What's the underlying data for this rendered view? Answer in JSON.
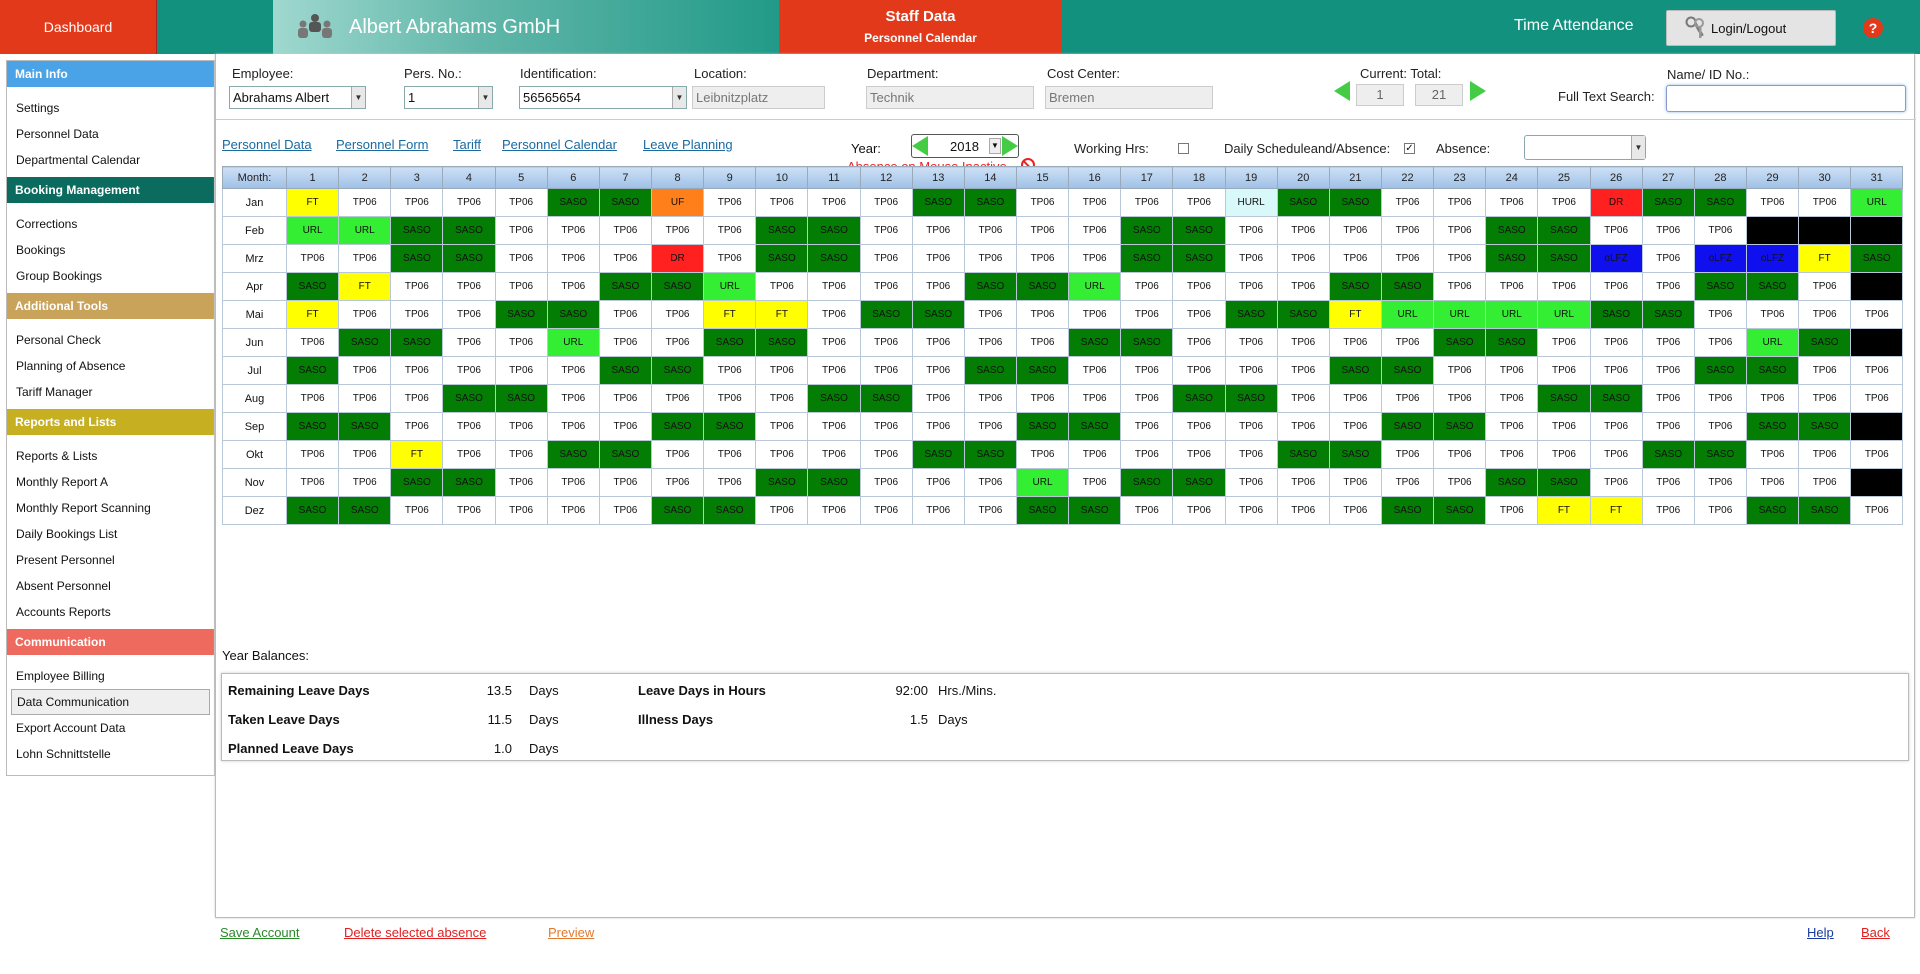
{
  "header": {
    "dashboard": "Dashboard",
    "company": "Albert Abrahams GmbH",
    "staff_title": "Staff Data",
    "staff_sub": "Personnel Calendar",
    "time_attendance": "Time Attendance",
    "login": "Login/Logout",
    "help": "?"
  },
  "sidebar": [
    {
      "title": "Main Info",
      "color": "#4aa3e6",
      "items": [
        "Settings",
        "Personnel Data",
        "Departmental Calendar"
      ]
    },
    {
      "title": "Booking Management",
      "color": "#0b6b5e",
      "items": [
        "Corrections",
        "Bookings",
        "Group Bookings"
      ]
    },
    {
      "title": "Additional Tools",
      "color": "#c9a35a",
      "items": [
        "Personal Check",
        "Planning of Absence",
        "Tariff Manager"
      ]
    },
    {
      "title": "Reports and Lists",
      "color": "#c6b022",
      "items": [
        "Reports & Lists",
        "Monthly Report A",
        "Monthly Report Scanning",
        "Daily Bookings List",
        "Present Personnel",
        "Absent Personnel",
        "Accounts Reports"
      ]
    },
    {
      "title": "Communication",
      "color": "#ef6a5e",
      "items": [
        "Employee Billing",
        "Data Communication",
        "Export Account Data",
        "Lohn Schnittstelle"
      ]
    }
  ],
  "sidebar_active": "Data Communication",
  "filters": {
    "employee_label": "Employee:",
    "employee": "Abrahams Albert",
    "persno_label": "Pers. No.:",
    "persno": "1",
    "ident_label": "Identification:",
    "ident": "56565654",
    "location_label": "Location:",
    "location": "Leibnitzplatz",
    "dept_label": "Department:",
    "dept": "Technik",
    "cost_label": "Cost Center:",
    "cost": "Bremen",
    "current_label": "Current: Total:",
    "current": "1",
    "total": "21",
    "name_label": "Name/ ID No.:",
    "search_label": "Full Text Search:",
    "search_value": ""
  },
  "nav_links": [
    "Personnel Data",
    "Personnel Form",
    "Tariff",
    "Personnel Calendar",
    "Leave Planning"
  ],
  "controls": {
    "year_label": "Year:",
    "year": "2018",
    "absence_inactive": "Absence on Mouse Inactive",
    "working_hrs": "Working Hrs:",
    "working_checked": false,
    "daily": "Daily Scheduleand/Absence:",
    "daily_checked": true,
    "absence_label": "Absence:",
    "absence_value": ""
  },
  "calendar": {
    "month_header": "Month:",
    "days": [
      "1",
      "2",
      "3",
      "4",
      "5",
      "6",
      "7",
      "8",
      "9",
      "10",
      "11",
      "12",
      "13",
      "14",
      "15",
      "16",
      "17",
      "18",
      "19",
      "20",
      "21",
      "22",
      "23",
      "24",
      "25",
      "26",
      "27",
      "28",
      "29",
      "30",
      "31"
    ],
    "colors": {
      "SASO": "#037d03",
      "FT": "#ffff00",
      "URL": "#33ee33",
      "UF": "#ff7f1a",
      "DR": "#ff2020",
      "HURL": "#d8f8fa",
      "oLFZ": "#1010ee",
      "": "#000000"
    },
    "rows": [
      {
        "month": "Jan",
        "cells": [
          "FT",
          "TP06",
          "TP06",
          "TP06",
          "TP06",
          "SASO",
          "SASO",
          "UF",
          "TP06",
          "TP06",
          "TP06",
          "TP06",
          "SASO",
          "SASO",
          "TP06",
          "TP06",
          "TP06",
          "TP06",
          "HURL",
          "SASO",
          "SASO",
          "TP06",
          "TP06",
          "TP06",
          "TP06",
          "DR",
          "SASO",
          "SASO",
          "TP06",
          "TP06",
          "URL"
        ]
      },
      {
        "month": "Feb",
        "cells": [
          "URL",
          "URL",
          "SASO",
          "SASO",
          "TP06",
          "TP06",
          "TP06",
          "TP06",
          "TP06",
          "SASO",
          "SASO",
          "TP06",
          "TP06",
          "TP06",
          "TP06",
          "TP06",
          "SASO",
          "SASO",
          "TP06",
          "TP06",
          "TP06",
          "TP06",
          "TP06",
          "SASO",
          "SASO",
          "TP06",
          "TP06",
          "TP06",
          "",
          "",
          ""
        ]
      },
      {
        "month": "Mrz",
        "cells": [
          "TP06",
          "TP06",
          "SASO",
          "SASO",
          "TP06",
          "TP06",
          "TP06",
          "DR",
          "TP06",
          "SASO",
          "SASO",
          "TP06",
          "TP06",
          "TP06",
          "TP06",
          "TP06",
          "SASO",
          "SASO",
          "TP06",
          "TP06",
          "TP06",
          "TP06",
          "TP06",
          "SASO",
          "SASO",
          "oLFZ",
          "TP06",
          "oLFZ",
          "oLFZ",
          "FT",
          "SASO"
        ]
      },
      {
        "month": "Apr",
        "cells": [
          "SASO",
          "FT",
          "TP06",
          "TP06",
          "TP06",
          "TP06",
          "SASO",
          "SASO",
          "URL",
          "TP06",
          "TP06",
          "TP06",
          "TP06",
          "SASO",
          "SASO",
          "URL",
          "TP06",
          "TP06",
          "TP06",
          "TP06",
          "SASO",
          "SASO",
          "TP06",
          "TP06",
          "TP06",
          "TP06",
          "TP06",
          "SASO",
          "SASO",
          "TP06",
          ""
        ]
      },
      {
        "month": "Mai",
        "cells": [
          "FT",
          "TP06",
          "TP06",
          "TP06",
          "SASO",
          "SASO",
          "TP06",
          "TP06",
          "FT",
          "FT",
          "TP06",
          "SASO",
          "SASO",
          "TP06",
          "TP06",
          "TP06",
          "TP06",
          "TP06",
          "SASO",
          "SASO",
          "FT",
          "URL",
          "URL",
          "URL",
          "URL",
          "SASO",
          "SASO",
          "TP06",
          "TP06",
          "TP06",
          "TP06"
        ]
      },
      {
        "month": "Jun",
        "cells": [
          "TP06",
          "SASO",
          "SASO",
          "TP06",
          "TP06",
          "URL",
          "TP06",
          "TP06",
          "SASO",
          "SASO",
          "TP06",
          "TP06",
          "TP06",
          "TP06",
          "TP06",
          "SASO",
          "SASO",
          "TP06",
          "TP06",
          "TP06",
          "TP06",
          "TP06",
          "SASO",
          "SASO",
          "TP06",
          "TP06",
          "TP06",
          "TP06",
          "URL",
          "SASO",
          ""
        ]
      },
      {
        "month": "Jul",
        "cells": [
          "SASO",
          "TP06",
          "TP06",
          "TP06",
          "TP06",
          "TP06",
          "SASO",
          "SASO",
          "TP06",
          "TP06",
          "TP06",
          "TP06",
          "TP06",
          "SASO",
          "SASO",
          "TP06",
          "TP06",
          "TP06",
          "TP06",
          "TP06",
          "SASO",
          "SASO",
          "TP06",
          "TP06",
          "TP06",
          "TP06",
          "TP06",
          "SASO",
          "SASO",
          "TP06",
          "TP06"
        ]
      },
      {
        "month": "Aug",
        "cells": [
          "TP06",
          "TP06",
          "TP06",
          "SASO",
          "SASO",
          "TP06",
          "TP06",
          "TP06",
          "TP06",
          "TP06",
          "SASO",
          "SASO",
          "TP06",
          "TP06",
          "TP06",
          "TP06",
          "TP06",
          "SASO",
          "SASO",
          "TP06",
          "TP06",
          "TP06",
          "TP06",
          "TP06",
          "SASO",
          "SASO",
          "TP06",
          "TP06",
          "TP06",
          "TP06",
          "TP06"
        ]
      },
      {
        "month": "Sep",
        "cells": [
          "SASO",
          "SASO",
          "TP06",
          "TP06",
          "TP06",
          "TP06",
          "TP06",
          "SASO",
          "SASO",
          "TP06",
          "TP06",
          "TP06",
          "TP06",
          "TP06",
          "SASO",
          "SASO",
          "TP06",
          "TP06",
          "TP06",
          "TP06",
          "TP06",
          "SASO",
          "SASO",
          "TP06",
          "TP06",
          "TP06",
          "TP06",
          "TP06",
          "SASO",
          "SASO",
          ""
        ]
      },
      {
        "month": "Okt",
        "cells": [
          "TP06",
          "TP06",
          "FT",
          "TP06",
          "TP06",
          "SASO",
          "SASO",
          "TP06",
          "TP06",
          "TP06",
          "TP06",
          "TP06",
          "SASO",
          "SASO",
          "TP06",
          "TP06",
          "TP06",
          "TP06",
          "TP06",
          "SASO",
          "SASO",
          "TP06",
          "TP06",
          "TP06",
          "TP06",
          "TP06",
          "SASO",
          "SASO",
          "TP06",
          "TP06",
          "TP06"
        ]
      },
      {
        "month": "Nov",
        "cells": [
          "TP06",
          "TP06",
          "SASO",
          "SASO",
          "TP06",
          "TP06",
          "TP06",
          "TP06",
          "TP06",
          "SASO",
          "SASO",
          "TP06",
          "TP06",
          "TP06",
          "URL",
          "TP06",
          "SASO",
          "SASO",
          "TP06",
          "TP06",
          "TP06",
          "TP06",
          "TP06",
          "SASO",
          "SASO",
          "TP06",
          "TP06",
          "TP06",
          "TP06",
          "TP06",
          ""
        ]
      },
      {
        "month": "Dez",
        "cells": [
          "SASO",
          "SASO",
          "TP06",
          "TP06",
          "TP06",
          "TP06",
          "TP06",
          "SASO",
          "SASO",
          "TP06",
          "TP06",
          "TP06",
          "TP06",
          "TP06",
          "SASO",
          "SASO",
          "TP06",
          "TP06",
          "TP06",
          "TP06",
          "TP06",
          "SASO",
          "SASO",
          "TP06",
          "FT",
          "FT",
          "TP06",
          "TP06",
          "SASO",
          "SASO",
          "TP06"
        ]
      }
    ]
  },
  "balances": {
    "title": "Year Balances:",
    "remaining_label": "Remaining Leave Days",
    "remaining": "13.5",
    "remaining_unit": "Days",
    "taken_label": "Taken Leave Days",
    "taken": "11.5",
    "taken_unit": "Days",
    "planned_label": "Planned Leave Days",
    "planned": "1.0",
    "planned_unit": "Days",
    "hours_label": "Leave Days in Hours",
    "hours": "92:00",
    "hours_unit": "Hrs./Mins.",
    "illness_label": "Illness Days",
    "illness": "1.5",
    "illness_unit": "Days"
  },
  "footer": {
    "save": "Save Account",
    "save_color": "#2a8a2a",
    "delete": "Delete selected absence",
    "delete_color": "#e02020",
    "preview": "Preview",
    "preview_color": "#e07a30",
    "help": "Help",
    "help_color": "#1a3aa0",
    "back": "Back",
    "back_color": "#e02020"
  }
}
